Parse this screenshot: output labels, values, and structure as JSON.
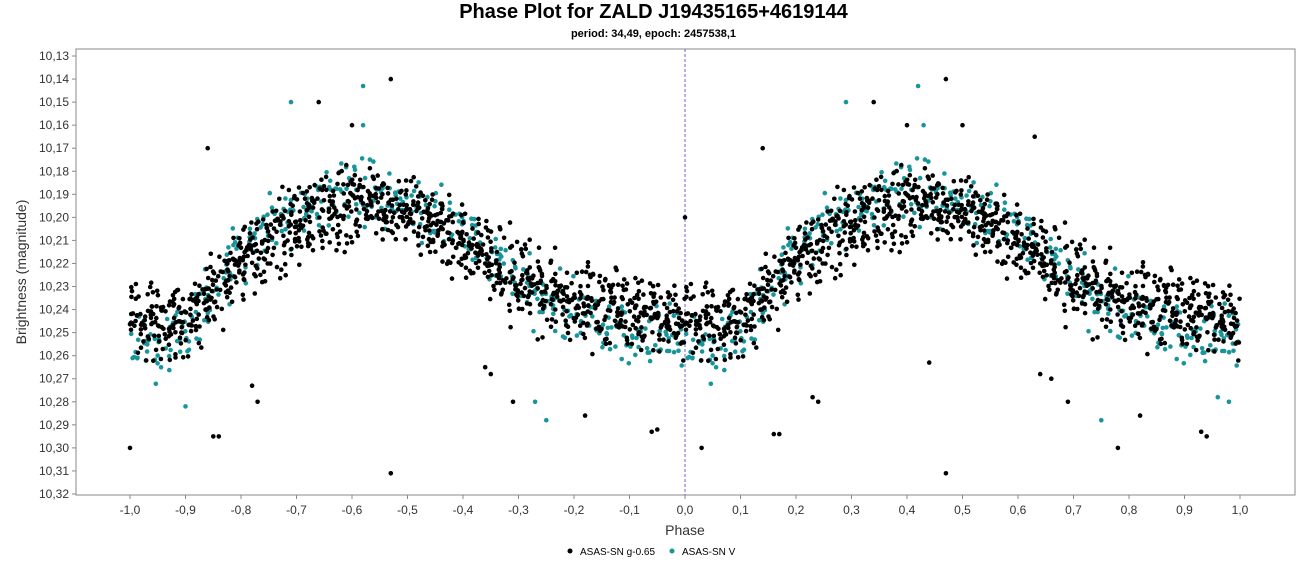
{
  "chart_data": {
    "type": "scatter",
    "title": "Phase Plot for ZALD J19435165+4619144",
    "subtitle": "period: 34,49, epoch: 2457538,1",
    "xlabel": "Phase",
    "ylabel": "Brightness (magnitude)",
    "xlim": [
      -1.0,
      1.0
    ],
    "ylim": [
      10.13,
      10.32
    ],
    "y_inverted": true,
    "x_ticks": [
      "-1,0",
      "-0,9",
      "-0,8",
      "-0,7",
      "-0,6",
      "-0,5",
      "-0,4",
      "-0,3",
      "-0,2",
      "-0,1",
      "0,0",
      "0,1",
      "0,2",
      "0,3",
      "0,4",
      "0,5",
      "0,6",
      "0,7",
      "0,8",
      "0,9",
      "1,0"
    ],
    "y_ticks": [
      "10,13",
      "10,14",
      "10,15",
      "10,16",
      "10,17",
      "10,18",
      "10,19",
      "10,20",
      "10,21",
      "10,22",
      "10,23",
      "10,24",
      "10,25",
      "10,26",
      "10,27",
      "10,28",
      "10,29",
      "10,30",
      "10,31",
      "10,32"
    ],
    "reference_line_x": 0.0,
    "legend_position": "bottom",
    "series": [
      {
        "name": "ASAS-SN g-0.65",
        "color": "#000000",
        "x": [
          0.0,
          0.02,
          0.04,
          0.06,
          0.08,
          0.1,
          0.12,
          0.14,
          0.16,
          0.18,
          0.2,
          0.22,
          0.24,
          0.26,
          0.28,
          0.3,
          0.32,
          0.34,
          0.36,
          0.38,
          0.4,
          0.42,
          0.44,
          0.46,
          0.48,
          0.5,
          0.52,
          0.54,
          0.56,
          0.58,
          0.6,
          0.62,
          0.64,
          0.66,
          0.68,
          0.7,
          0.72,
          0.74,
          0.76,
          0.78,
          0.8,
          0.82,
          0.84,
          0.86,
          0.88,
          0.9,
          0.92,
          0.94,
          0.96,
          0.98,
          1.0
        ],
        "y": [
          10.242,
          10.243,
          10.245,
          10.246,
          10.244,
          10.241,
          10.238,
          10.234,
          10.23,
          10.226,
          10.221,
          10.216,
          10.212,
          10.208,
          10.205,
          10.203,
          10.201,
          10.199,
          10.198,
          10.197,
          10.196,
          10.195,
          10.195,
          10.196,
          10.197,
          10.198,
          10.2,
          10.202,
          10.205,
          10.208,
          10.211,
          10.214,
          10.217,
          10.22,
          10.223,
          10.226,
          10.229,
          10.231,
          10.233,
          10.235,
          10.237,
          10.239,
          10.24,
          10.241,
          10.241,
          10.242,
          10.242,
          10.242,
          10.242,
          10.242,
          10.242
        ],
        "outliers": [
          [
            0.0,
            10.2
          ],
          [
            0.03,
            10.3
          ],
          [
            0.02,
            10.245
          ],
          [
            0.14,
            10.17
          ],
          [
            0.16,
            10.294
          ],
          [
            0.17,
            10.294
          ],
          [
            0.23,
            10.278
          ],
          [
            0.24,
            10.28
          ],
          [
            0.34,
            10.15
          ],
          [
            0.4,
            10.16
          ],
          [
            0.47,
            10.14
          ],
          [
            0.47,
            10.311
          ],
          [
            0.44,
            10.263
          ],
          [
            0.5,
            10.16
          ],
          [
            0.63,
            10.165
          ],
          [
            0.64,
            10.268
          ],
          [
            0.66,
            10.27
          ],
          [
            0.69,
            10.28
          ],
          [
            0.78,
            10.3
          ],
          [
            0.82,
            10.286
          ],
          [
            0.93,
            10.293
          ],
          [
            0.94,
            10.295
          ],
          [
            -0.53,
            10.14
          ],
          [
            -0.53,
            10.311
          ],
          [
            -0.6,
            10.16
          ],
          [
            -0.66,
            10.15
          ],
          [
            -0.86,
            10.17
          ],
          [
            -1.0,
            10.3
          ],
          [
            -0.85,
            10.295
          ],
          [
            -0.84,
            10.295
          ],
          [
            -0.78,
            10.273
          ],
          [
            -0.77,
            10.28
          ],
          [
            -0.36,
            10.265
          ],
          [
            -0.35,
            10.268
          ],
          [
            -0.31,
            10.28
          ],
          [
            -0.18,
            10.286
          ],
          [
            -0.06,
            10.293
          ],
          [
            -0.05,
            10.292
          ]
        ],
        "count_per_x": 22,
        "spread": 0.018
      },
      {
        "name": "ASAS-SN V",
        "color": "#17959a",
        "x": [
          0.0,
          0.02,
          0.04,
          0.06,
          0.08,
          0.1,
          0.12,
          0.14,
          0.16,
          0.18,
          0.2,
          0.22,
          0.24,
          0.26,
          0.28,
          0.3,
          0.32,
          0.34,
          0.36,
          0.38,
          0.4,
          0.42,
          0.44,
          0.46,
          0.48,
          0.5,
          0.52,
          0.54,
          0.56,
          0.58,
          0.6,
          0.62,
          0.64,
          0.66,
          0.68,
          0.7,
          0.72,
          0.74,
          0.76,
          0.78,
          0.8,
          0.82,
          0.84,
          0.86,
          0.88,
          0.9,
          0.92,
          0.94,
          0.96,
          0.98,
          1.0
        ],
        "y": [
          10.252,
          10.255,
          10.257,
          10.256,
          10.253,
          10.249,
          10.243,
          10.236,
          10.229,
          10.222,
          10.216,
          10.211,
          10.206,
          10.202,
          10.199,
          10.197,
          10.195,
          10.193,
          10.192,
          10.191,
          10.19,
          10.19,
          10.19,
          10.191,
          10.192,
          10.194,
          10.196,
          10.198,
          10.201,
          10.204,
          10.207,
          10.211,
          10.214,
          10.218,
          10.222,
          10.226,
          10.23,
          10.234,
          10.237,
          10.24,
          10.243,
          10.245,
          10.247,
          10.249,
          10.25,
          10.251,
          10.252,
          10.252,
          10.252,
          10.252,
          10.252
        ],
        "outliers": [
          [
            0.29,
            10.15
          ],
          [
            0.42,
            10.143
          ],
          [
            0.43,
            10.16
          ],
          [
            0.75,
            10.288
          ],
          [
            0.96,
            10.278
          ],
          [
            0.98,
            10.28
          ],
          [
            -0.58,
            10.143
          ],
          [
            -0.71,
            10.15
          ],
          [
            -0.58,
            10.16
          ],
          [
            -0.25,
            10.288
          ],
          [
            -0.27,
            10.28
          ],
          [
            -0.9,
            10.282
          ]
        ],
        "count_per_x": 8,
        "spread": 0.015
      }
    ]
  },
  "legend": [
    {
      "label": "ASAS-SN g-0.65",
      "color": "#000000"
    },
    {
      "label": "ASAS-SN  V",
      "color": "#17959a"
    }
  ]
}
